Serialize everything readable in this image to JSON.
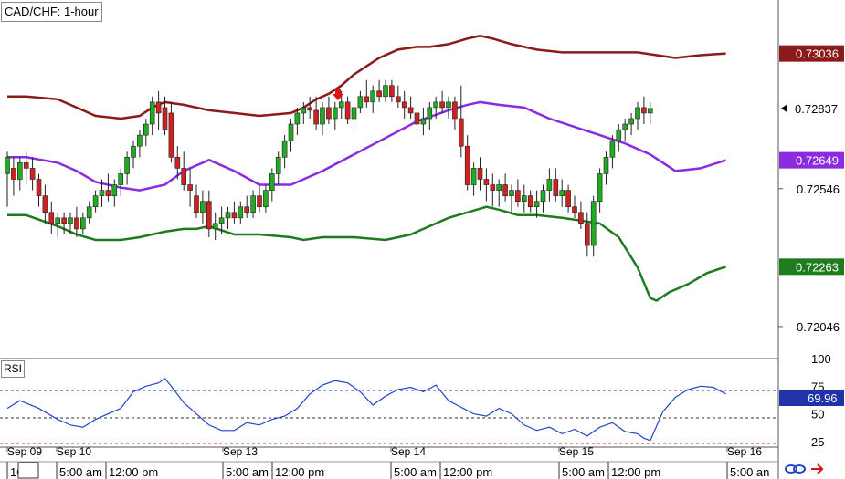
{
  "chart_title": "CAD/CHF: 1-hour",
  "colors": {
    "upper_band": "#8b1a1a",
    "middle_band": "#8a2be2",
    "lower_band": "#1e7b1e",
    "bull_candle": "#22aa22",
    "bear_candle": "#cc2222",
    "rsi_line": "#2244cc",
    "arrow": "#e01010"
  },
  "chart_data": {
    "type": "line",
    "title": "CAD/CHF: 1-hour",
    "y_axis_ticks": [
      "0.72546",
      "0.72046"
    ],
    "ylim": [
      0.7193,
      0.7323
    ],
    "price_labels": [
      {
        "text": "0.73036",
        "value": 0.73036,
        "color": "#8b1a1a"
      },
      {
        "text": "0.72837",
        "value": 0.72837,
        "color": "#000000"
      },
      {
        "text": "0.72649",
        "value": 0.72649,
        "color": "#8a2be2"
      },
      {
        "text": "0.72263",
        "value": 0.72263,
        "color": "#1e7b1e"
      }
    ],
    "series": [
      {
        "name": "upper",
        "values": [
          [
            0,
            0.7288
          ],
          [
            3,
            0.7288
          ],
          [
            8,
            0.7287
          ],
          [
            11,
            0.7284
          ],
          [
            14,
            0.7281
          ],
          [
            18,
            0.728
          ],
          [
            21,
            0.7281
          ],
          [
            23,
            0.7284
          ],
          [
            25,
            0.7286
          ],
          [
            28,
            0.7285
          ],
          [
            30,
            0.7284
          ],
          [
            32,
            0.7283
          ],
          [
            36,
            0.7282
          ],
          [
            40,
            0.7281
          ],
          [
            45,
            0.7282
          ],
          [
            47,
            0.7284
          ],
          [
            49,
            0.7287
          ],
          [
            51,
            0.7289
          ],
          [
            53,
            0.7292
          ],
          [
            55,
            0.7296
          ],
          [
            57,
            0.7299
          ],
          [
            59,
            0.7302
          ],
          [
            62,
            0.7305
          ],
          [
            65,
            0.7306
          ],
          [
            67,
            0.7306
          ],
          [
            70,
            0.7307
          ],
          [
            73,
            0.7309
          ],
          [
            75,
            0.731
          ],
          [
            77,
            0.7309
          ],
          [
            80,
            0.7307
          ],
          [
            84,
            0.7305
          ],
          [
            88,
            0.7304
          ],
          [
            92,
            0.7304
          ],
          [
            96,
            0.7304
          ],
          [
            100,
            0.7304
          ],
          [
            103,
            0.7303
          ],
          [
            106,
            0.7302
          ],
          [
            110,
            0.7303
          ],
          [
            114,
            0.73036
          ]
        ]
      },
      {
        "name": "middle",
        "values": [
          [
            0,
            0.7266
          ],
          [
            3,
            0.7266
          ],
          [
            8,
            0.7264
          ],
          [
            11,
            0.7261
          ],
          [
            14,
            0.7257
          ],
          [
            18,
            0.7255
          ],
          [
            21,
            0.7254
          ],
          [
            25,
            0.7256
          ],
          [
            28,
            0.7261
          ],
          [
            30,
            0.7263
          ],
          [
            32,
            0.7265
          ],
          [
            36,
            0.7261
          ],
          [
            40,
            0.7256
          ],
          [
            45,
            0.7256
          ],
          [
            47,
            0.7258
          ],
          [
            50,
            0.7261
          ],
          [
            55,
            0.7267
          ],
          [
            60,
            0.7273
          ],
          [
            65,
            0.7279
          ],
          [
            70,
            0.7283
          ],
          [
            73,
            0.7285
          ],
          [
            75,
            0.7286
          ],
          [
            78,
            0.7285
          ],
          [
            82,
            0.7284
          ],
          [
            86,
            0.728
          ],
          [
            90,
            0.7277
          ],
          [
            94,
            0.7274
          ],
          [
            98,
            0.7271
          ],
          [
            102,
            0.7267
          ],
          [
            106,
            0.7261
          ],
          [
            110,
            0.7262
          ],
          [
            114,
            0.72649
          ]
        ]
      },
      {
        "name": "lower",
        "values": [
          [
            0,
            0.7245
          ],
          [
            3,
            0.7245
          ],
          [
            8,
            0.7241
          ],
          [
            11,
            0.7238
          ],
          [
            14,
            0.7236
          ],
          [
            18,
            0.7236
          ],
          [
            21,
            0.7237
          ],
          [
            25,
            0.7239
          ],
          [
            28,
            0.724
          ],
          [
            30,
            0.724
          ],
          [
            32,
            0.7241
          ],
          [
            36,
            0.7238
          ],
          [
            40,
            0.7238
          ],
          [
            45,
            0.7237
          ],
          [
            47,
            0.7236
          ],
          [
            50,
            0.7237
          ],
          [
            55,
            0.7237
          ],
          [
            60,
            0.7236
          ],
          [
            64,
            0.7238
          ],
          [
            67,
            0.7241
          ],
          [
            70,
            0.7244
          ],
          [
            73,
            0.7246
          ],
          [
            76,
            0.7248
          ],
          [
            78,
            0.7247
          ],
          [
            81,
            0.7245
          ],
          [
            84,
            0.7245
          ],
          [
            88,
            0.7244
          ],
          [
            91,
            0.7243
          ],
          [
            94,
            0.7242
          ],
          [
            97,
            0.7237
          ],
          [
            100,
            0.7226
          ],
          [
            102,
            0.7215
          ],
          [
            103,
            0.7214
          ],
          [
            105,
            0.7217
          ],
          [
            108,
            0.722
          ],
          [
            111,
            0.7224
          ],
          [
            114,
            0.72263
          ]
        ]
      },
      {
        "name": "RSI",
        "values": [
          [
            0,
            55
          ],
          [
            2,
            62
          ],
          [
            5,
            55
          ],
          [
            8,
            45
          ],
          [
            10,
            40
          ],
          [
            12,
            38
          ],
          [
            14,
            45
          ],
          [
            16,
            50
          ],
          [
            18,
            55
          ],
          [
            20,
            70
          ],
          [
            22,
            75
          ],
          [
            24,
            78
          ],
          [
            25,
            82
          ],
          [
            26,
            75
          ],
          [
            28,
            60
          ],
          [
            30,
            50
          ],
          [
            32,
            40
          ],
          [
            34,
            35
          ],
          [
            36,
            35
          ],
          [
            38,
            42
          ],
          [
            40,
            40
          ],
          [
            42,
            45
          ],
          [
            44,
            48
          ],
          [
            46,
            55
          ],
          [
            48,
            68
          ],
          [
            50,
            76
          ],
          [
            52,
            80
          ],
          [
            54,
            78
          ],
          [
            56,
            70
          ],
          [
            58,
            58
          ],
          [
            60,
            66
          ],
          [
            62,
            72
          ],
          [
            64,
            74
          ],
          [
            66,
            70
          ],
          [
            68,
            76
          ],
          [
            70,
            62
          ],
          [
            72,
            56
          ],
          [
            74,
            50
          ],
          [
            76,
            48
          ],
          [
            78,
            55
          ],
          [
            80,
            50
          ],
          [
            82,
            40
          ],
          [
            84,
            35
          ],
          [
            86,
            38
          ],
          [
            88,
            32
          ],
          [
            90,
            36
          ],
          [
            92,
            30
          ],
          [
            94,
            38
          ],
          [
            96,
            42
          ],
          [
            98,
            34
          ],
          [
            100,
            32
          ],
          [
            101,
            28
          ],
          [
            102,
            26
          ],
          [
            104,
            52
          ],
          [
            106,
            65
          ],
          [
            108,
            72
          ],
          [
            110,
            75
          ],
          [
            112,
            74
          ],
          [
            114,
            68
          ]
        ]
      }
    ],
    "candles": [
      [
        0.726,
        0.7268,
        0.7248,
        0.7266
      ],
      [
        0.7262,
        0.7266,
        0.7252,
        0.7258
      ],
      [
        0.7258,
        0.7266,
        0.7254,
        0.7264
      ],
      [
        0.7264,
        0.7268,
        0.7256,
        0.7262
      ],
      [
        0.7262,
        0.7266,
        0.7254,
        0.7258
      ],
      [
        0.7258,
        0.726,
        0.7248,
        0.7252
      ],
      [
        0.7252,
        0.7256,
        0.7242,
        0.7246
      ],
      [
        0.7246,
        0.725,
        0.7238,
        0.7242
      ],
      [
        0.7242,
        0.7246,
        0.7237,
        0.7244
      ],
      [
        0.7244,
        0.7246,
        0.7238,
        0.7242
      ],
      [
        0.7242,
        0.7246,
        0.7238,
        0.7244
      ],
      [
        0.7244,
        0.7248,
        0.7237,
        0.724
      ],
      [
        0.724,
        0.7246,
        0.7238,
        0.7244
      ],
      [
        0.7244,
        0.725,
        0.7242,
        0.7248
      ],
      [
        0.7248,
        0.7254,
        0.7246,
        0.7252
      ],
      [
        0.7252,
        0.7258,
        0.7248,
        0.7254
      ],
      [
        0.7254,
        0.726,
        0.725,
        0.7252
      ],
      [
        0.7252,
        0.7258,
        0.7248,
        0.7256
      ],
      [
        0.7256,
        0.7262,
        0.7252,
        0.726
      ],
      [
        0.726,
        0.7268,
        0.7256,
        0.7266
      ],
      [
        0.7266,
        0.7272,
        0.7262,
        0.727
      ],
      [
        0.727,
        0.7276,
        0.7266,
        0.7274
      ],
      [
        0.7274,
        0.728,
        0.727,
        0.7278
      ],
      [
        0.7278,
        0.7288,
        0.7274,
        0.7286
      ],
      [
        0.7286,
        0.729,
        0.7276,
        0.7282
      ],
      [
        0.7284,
        0.7288,
        0.7274,
        0.7276
      ],
      [
        0.7282,
        0.7286,
        0.7264,
        0.7266
      ],
      [
        0.7266,
        0.727,
        0.7258,
        0.7262
      ],
      [
        0.7262,
        0.7268,
        0.7254,
        0.7256
      ],
      [
        0.7256,
        0.7262,
        0.7248,
        0.7254
      ],
      [
        0.7252,
        0.7256,
        0.7244,
        0.7246
      ],
      [
        0.7246,
        0.7254,
        0.7242,
        0.725
      ],
      [
        0.725,
        0.7254,
        0.7237,
        0.724
      ],
      [
        0.724,
        0.7246,
        0.7236,
        0.7242
      ],
      [
        0.7242,
        0.7248,
        0.7238,
        0.7244
      ],
      [
        0.7244,
        0.7248,
        0.724,
        0.7246
      ],
      [
        0.7246,
        0.725,
        0.7242,
        0.7244
      ],
      [
        0.7244,
        0.725,
        0.7242,
        0.7248
      ],
      [
        0.7248,
        0.7252,
        0.7244,
        0.7246
      ],
      [
        0.7246,
        0.7254,
        0.7244,
        0.7252
      ],
      [
        0.7252,
        0.7256,
        0.7246,
        0.7248
      ],
      [
        0.7248,
        0.7256,
        0.7246,
        0.7254
      ],
      [
        0.7254,
        0.7262,
        0.725,
        0.726
      ],
      [
        0.726,
        0.7268,
        0.7256,
        0.7266
      ],
      [
        0.7266,
        0.7274,
        0.7262,
        0.7272
      ],
      [
        0.7272,
        0.728,
        0.7268,
        0.7278
      ],
      [
        0.7278,
        0.7284,
        0.7274,
        0.7282
      ],
      [
        0.7282,
        0.7286,
        0.7278,
        0.7284
      ],
      [
        0.7284,
        0.7288,
        0.728,
        0.7283
      ],
      [
        0.7283,
        0.7288,
        0.7276,
        0.7278
      ],
      [
        0.7278,
        0.7286,
        0.7274,
        0.7284
      ],
      [
        0.7284,
        0.7288,
        0.7278,
        0.728
      ],
      [
        0.728,
        0.7286,
        0.7276,
        0.7284
      ],
      [
        0.7284,
        0.729,
        0.728,
        0.7286
      ],
      [
        0.7286,
        0.7288,
        0.7278,
        0.728
      ],
      [
        0.728,
        0.7286,
        0.7276,
        0.7284
      ],
      [
        0.7284,
        0.729,
        0.7282,
        0.7288
      ],
      [
        0.7288,
        0.7294,
        0.7284,
        0.7286
      ],
      [
        0.7286,
        0.7292,
        0.7282,
        0.729
      ],
      [
        0.729,
        0.7294,
        0.7286,
        0.7288
      ],
      [
        0.7288,
        0.7294,
        0.7286,
        0.7292
      ],
      [
        0.7292,
        0.7294,
        0.7286,
        0.7288
      ],
      [
        0.7288,
        0.7292,
        0.7284,
        0.7286
      ],
      [
        0.7286,
        0.729,
        0.728,
        0.7284
      ],
      [
        0.7284,
        0.7288,
        0.728,
        0.7282
      ],
      [
        0.7282,
        0.7286,
        0.7276,
        0.7278
      ],
      [
        0.7278,
        0.7284,
        0.7274,
        0.728
      ],
      [
        0.728,
        0.7286,
        0.7276,
        0.7284
      ],
      [
        0.7284,
        0.7288,
        0.728,
        0.7286
      ],
      [
        0.7286,
        0.729,
        0.7282,
        0.7284
      ],
      [
        0.7284,
        0.7288,
        0.728,
        0.7286
      ],
      [
        0.7286,
        0.7288,
        0.7276,
        0.728
      ],
      [
        0.728,
        0.7292,
        0.7266,
        0.727
      ],
      [
        0.727,
        0.7274,
        0.7254,
        0.7256
      ],
      [
        0.7256,
        0.7264,
        0.7252,
        0.7262
      ],
      [
        0.7262,
        0.7266,
        0.7254,
        0.7258
      ],
      [
        0.7258,
        0.7262,
        0.725,
        0.7256
      ],
      [
        0.7256,
        0.726,
        0.7248,
        0.7254
      ],
      [
        0.7254,
        0.7258,
        0.7248,
        0.7256
      ],
      [
        0.7256,
        0.726,
        0.725,
        0.7252
      ],
      [
        0.7252,
        0.7256,
        0.7246,
        0.7254
      ],
      [
        0.7254,
        0.7258,
        0.7248,
        0.725
      ],
      [
        0.725,
        0.7256,
        0.7246,
        0.7252
      ],
      [
        0.7252,
        0.7254,
        0.7246,
        0.7248
      ],
      [
        0.7248,
        0.7254,
        0.7244,
        0.725
      ],
      [
        0.725,
        0.7256,
        0.7246,
        0.7254
      ],
      [
        0.7254,
        0.7262,
        0.725,
        0.7258
      ],
      [
        0.7258,
        0.7262,
        0.725,
        0.7252
      ],
      [
        0.7252,
        0.7258,
        0.7248,
        0.7254
      ],
      [
        0.7254,
        0.7256,
        0.7246,
        0.7248
      ],
      [
        0.7248,
        0.7252,
        0.7244,
        0.7246
      ],
      [
        0.7246,
        0.725,
        0.724,
        0.7242
      ],
      [
        0.7242,
        0.7246,
        0.723,
        0.7234
      ],
      [
        0.7234,
        0.7252,
        0.723,
        0.725
      ],
      [
        0.725,
        0.7262,
        0.7246,
        0.726
      ],
      [
        0.726,
        0.7268,
        0.7256,
        0.7266
      ],
      [
        0.7266,
        0.7274,
        0.7262,
        0.7272
      ],
      [
        0.7272,
        0.7278,
        0.7268,
        0.7276
      ],
      [
        0.7276,
        0.728,
        0.7272,
        0.7278
      ],
      [
        0.7278,
        0.7282,
        0.7274,
        0.728
      ],
      [
        0.728,
        0.7286,
        0.7276,
        0.7284
      ],
      [
        0.7284,
        0.7288,
        0.7278,
        0.7282
      ],
      [
        0.7282,
        0.7286,
        0.7278,
        0.72837
      ]
    ],
    "rsi": {
      "label": "RSI",
      "value_label": "69.96",
      "ticks": [
        "100",
        "75",
        "50",
        "25"
      ],
      "ylim": [
        20,
        100
      ]
    },
    "x_ticks_top": [
      "Sep 09",
      "Sep 10",
      "Sep 13",
      "Sep 14",
      "Sep 15",
      "Sep 16"
    ],
    "x_ticks_bottom": [
      "10",
      "5:00 am",
      "12:00 pm",
      "5:00 am",
      "12:00 pm",
      "5:00 am",
      "12:00 pm",
      "5:00 am",
      "12:00 pm",
      "5:00 an"
    ]
  }
}
